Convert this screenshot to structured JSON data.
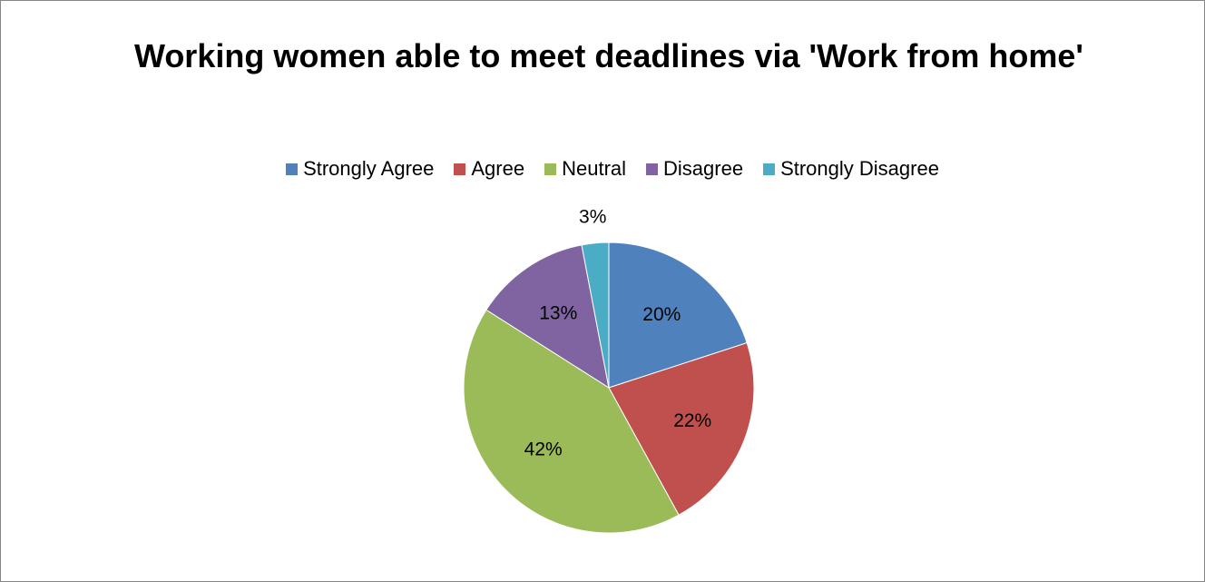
{
  "chart_data": {
    "type": "pie",
    "title": "Working women able to meet deadlines via 'Work from home'",
    "legend_position": "top",
    "categories": [
      "Strongly Agree",
      "Agree",
      "Neutral",
      "Disagree",
      "Strongly Disagree"
    ],
    "values": [
      20,
      22,
      42,
      13,
      3
    ],
    "labels": [
      "20%",
      "22%",
      "42%",
      "13%",
      "3%"
    ],
    "colors": [
      "#4f81bd",
      "#c0504d",
      "#9bbb59",
      "#8064a2",
      "#4bacc6"
    ]
  }
}
